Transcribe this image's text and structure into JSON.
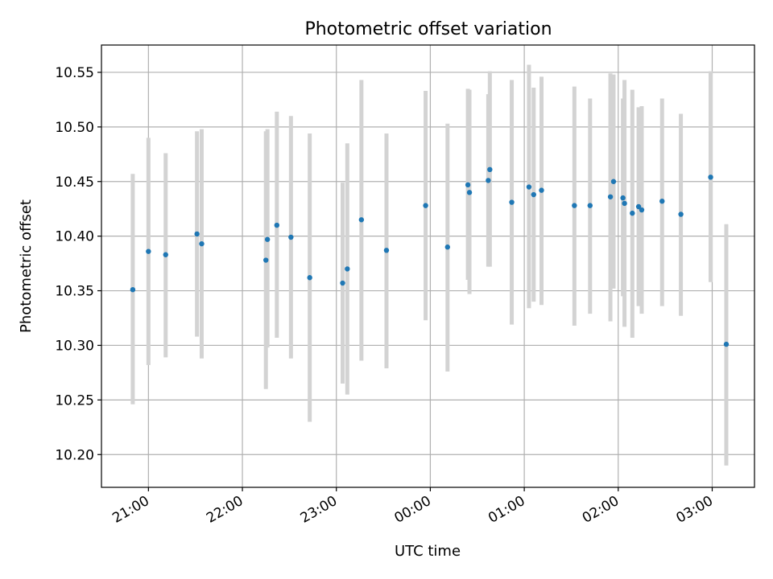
{
  "chart_data": {
    "type": "scatter",
    "title": "Photometric offset variation",
    "xlabel": "UTC time",
    "ylabel": "Photometric offset",
    "grid": true,
    "x_ticks": [
      "21:00",
      "22:00",
      "23:00",
      "00:00",
      "01:00",
      "02:00",
      "03:00"
    ],
    "y_ticks": [
      "10.20",
      "10.25",
      "10.30",
      "10.35",
      "10.40",
      "10.45",
      "10.50",
      "10.55"
    ],
    "xlim": [
      "20:30",
      "03:27"
    ],
    "ylim": [
      10.17,
      10.575
    ],
    "colors": {
      "point": "#1f77b4",
      "errorbar": "#d3d3d3",
      "grid": "#b0b0b0"
    },
    "points": [
      {
        "t": "20:50",
        "y": 10.351,
        "lo": 10.246,
        "hi": 10.457
      },
      {
        "t": "21:00",
        "y": 10.386,
        "lo": 10.282,
        "hi": 10.49
      },
      {
        "t": "21:11",
        "y": 10.383,
        "lo": 10.289,
        "hi": 10.476
      },
      {
        "t": "21:31",
        "y": 10.402,
        "lo": 10.308,
        "hi": 10.496
      },
      {
        "t": "21:34",
        "y": 10.393,
        "lo": 10.288,
        "hi": 10.498
      },
      {
        "t": "22:15",
        "y": 10.378,
        "lo": 10.26,
        "hi": 10.496
      },
      {
        "t": "22:16",
        "y": 10.397,
        "lo": 10.298,
        "hi": 10.498
      },
      {
        "t": "22:22",
        "y": 10.41,
        "lo": 10.307,
        "hi": 10.514
      },
      {
        "t": "22:31",
        "y": 10.399,
        "lo": 10.288,
        "hi": 10.51
      },
      {
        "t": "22:43",
        "y": 10.362,
        "lo": 10.23,
        "hi": 10.494
      },
      {
        "t": "23:04",
        "y": 10.357,
        "lo": 10.265,
        "hi": 10.449
      },
      {
        "t": "23:07",
        "y": 10.37,
        "lo": 10.255,
        "hi": 10.485
      },
      {
        "t": "23:16",
        "y": 10.415,
        "lo": 10.286,
        "hi": 10.543
      },
      {
        "t": "23:32",
        "y": 10.387,
        "lo": 10.279,
        "hi": 10.494
      },
      {
        "t": "23:57",
        "y": 10.428,
        "lo": 10.323,
        "hi": 10.533
      },
      {
        "t": "00:11",
        "y": 10.39,
        "lo": 10.276,
        "hi": 10.503
      },
      {
        "t": "00:24",
        "y": 10.447,
        "lo": 10.36,
        "hi": 10.535
      },
      {
        "t": "00:25",
        "y": 10.44,
        "lo": 10.347,
        "hi": 10.534
      },
      {
        "t": "00:37",
        "y": 10.451,
        "lo": 10.372,
        "hi": 10.53
      },
      {
        "t": "00:38",
        "y": 10.461,
        "lo": 10.372,
        "hi": 10.551
      },
      {
        "t": "00:52",
        "y": 10.431,
        "lo": 10.319,
        "hi": 10.543
      },
      {
        "t": "01:03",
        "y": 10.445,
        "lo": 10.334,
        "hi": 10.557
      },
      {
        "t": "01:06",
        "y": 10.438,
        "lo": 10.34,
        "hi": 10.536
      },
      {
        "t": "01:11",
        "y": 10.442,
        "lo": 10.337,
        "hi": 10.546
      },
      {
        "t": "01:32",
        "y": 10.428,
        "lo": 10.318,
        "hi": 10.537
      },
      {
        "t": "01:42",
        "y": 10.428,
        "lo": 10.329,
        "hi": 10.526
      },
      {
        "t": "01:55",
        "y": 10.436,
        "lo": 10.322,
        "hi": 10.549
      },
      {
        "t": "01:57",
        "y": 10.45,
        "lo": 10.352,
        "hi": 10.548
      },
      {
        "t": "02:03",
        "y": 10.435,
        "lo": 10.345,
        "hi": 10.526
      },
      {
        "t": "02:04",
        "y": 10.43,
        "lo": 10.317,
        "hi": 10.543
      },
      {
        "t": "02:09",
        "y": 10.421,
        "lo": 10.307,
        "hi": 10.534
      },
      {
        "t": "02:13",
        "y": 10.427,
        "lo": 10.336,
        "hi": 10.518
      },
      {
        "t": "02:15",
        "y": 10.424,
        "lo": 10.329,
        "hi": 10.519
      },
      {
        "t": "02:28",
        "y": 10.432,
        "lo": 10.336,
        "hi": 10.526
      },
      {
        "t": "02:40",
        "y": 10.42,
        "lo": 10.327,
        "hi": 10.512
      },
      {
        "t": "02:59",
        "y": 10.454,
        "lo": 10.358,
        "hi": 10.551
      },
      {
        "t": "03:09",
        "y": 10.301,
        "lo": 10.19,
        "hi": 10.411
      }
    ]
  }
}
